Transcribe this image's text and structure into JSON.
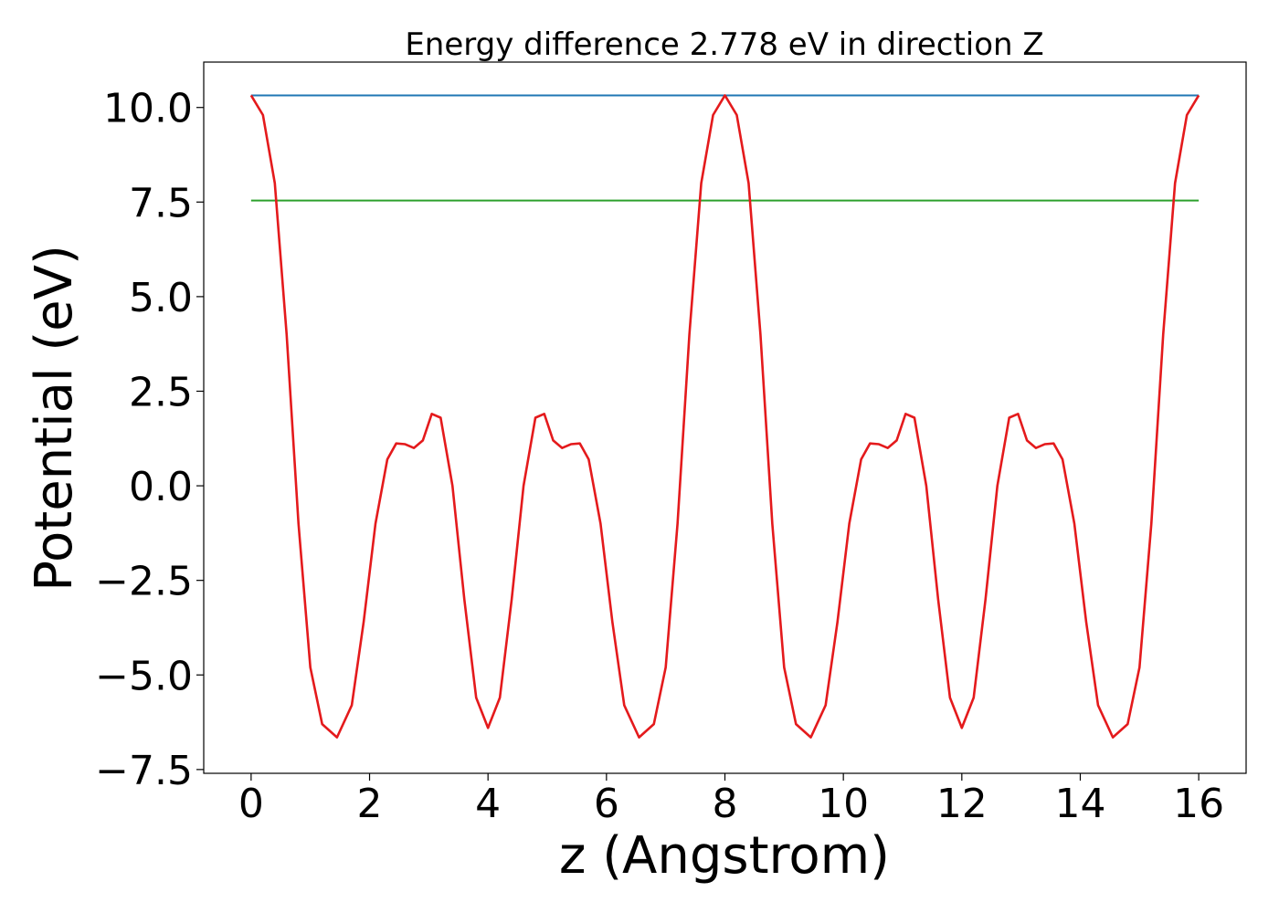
{
  "chart_data": {
    "type": "line",
    "title": "Energy difference 2.778 eV in direction Z",
    "xlabel": "z (Angstrom)",
    "ylabel": "Potential (eV)",
    "xlim": [
      -0.8,
      16.8
    ],
    "ylim": [
      -7.6,
      11.2
    ],
    "x_ticks": [
      0,
      2,
      4,
      6,
      8,
      10,
      12,
      14,
      16
    ],
    "x_tick_labels": [
      "0",
      "2",
      "4",
      "6",
      "8",
      "10",
      "12",
      "14",
      "16"
    ],
    "y_ticks": [
      -7.5,
      -5.0,
      -2.5,
      0.0,
      2.5,
      5.0,
      7.5,
      10.0
    ],
    "y_tick_labels": [
      "−7.5",
      "−5.0",
      "−2.5",
      "0.0",
      "2.5",
      "5.0",
      "7.5",
      "10.0"
    ],
    "grid": false,
    "legend": "none",
    "series": [
      {
        "color": "#1f77b4",
        "x": [
          0,
          16
        ],
        "y": [
          10.32,
          10.32
        ]
      },
      {
        "color": "#2ca02c",
        "x": [
          0,
          16
        ],
        "y": [
          7.54,
          7.54
        ]
      },
      {
        "color": "#e41a1c",
        "x": [
          0,
          0.2,
          0.4,
          0.6,
          0.8,
          1.0,
          1.2,
          1.45,
          1.7,
          1.9,
          2.1,
          2.3,
          2.45,
          2.6,
          2.75,
          2.9,
          3.05,
          3.2,
          3.4,
          3.6,
          3.8,
          4.0,
          4.2,
          4.4,
          4.6,
          4.8,
          4.95,
          5.1,
          5.25,
          5.4,
          5.55,
          5.7,
          5.9,
          6.1,
          6.3,
          6.55,
          6.8,
          7.0,
          7.2,
          7.4,
          7.6,
          7.8,
          8.0,
          8.2,
          8.4,
          8.6,
          8.8,
          9.0,
          9.2,
          9.45,
          9.7,
          9.9,
          10.1,
          10.3,
          10.45,
          10.6,
          10.75,
          10.9,
          11.05,
          11.2,
          11.4,
          11.6,
          11.8,
          12.0,
          12.2,
          12.4,
          12.6,
          12.8,
          12.95,
          13.1,
          13.25,
          13.4,
          13.55,
          13.7,
          13.9,
          14.1,
          14.3,
          14.55,
          14.8,
          15.0,
          15.2,
          15.4,
          15.6,
          15.8,
          16.0
        ],
        "y": [
          10.32,
          9.8,
          8.0,
          4.0,
          -1.0,
          -4.8,
          -6.3,
          -6.65,
          -5.8,
          -3.6,
          -1.0,
          0.7,
          1.12,
          1.1,
          1.0,
          1.2,
          1.9,
          1.8,
          0.0,
          -3.0,
          -5.6,
          -6.4,
          -5.6,
          -3.0,
          0.0,
          1.8,
          1.9,
          1.2,
          1.0,
          1.1,
          1.12,
          0.7,
          -1.0,
          -3.6,
          -5.8,
          -6.65,
          -6.3,
          -4.8,
          -1.0,
          4.0,
          8.0,
          9.8,
          10.32,
          9.8,
          8.0,
          4.0,
          -1.0,
          -4.8,
          -6.3,
          -6.65,
          -5.8,
          -3.6,
          -1.0,
          0.7,
          1.12,
          1.1,
          1.0,
          1.2,
          1.9,
          1.8,
          0.0,
          -3.0,
          -5.6,
          -6.4,
          -5.6,
          -3.0,
          0.0,
          1.8,
          1.9,
          1.2,
          1.0,
          1.1,
          1.12,
          0.7,
          -1.0,
          -3.6,
          -5.8,
          -6.65,
          -6.3,
          -4.8,
          -1.0,
          4.0,
          8.0,
          9.8,
          10.32
        ]
      }
    ]
  }
}
